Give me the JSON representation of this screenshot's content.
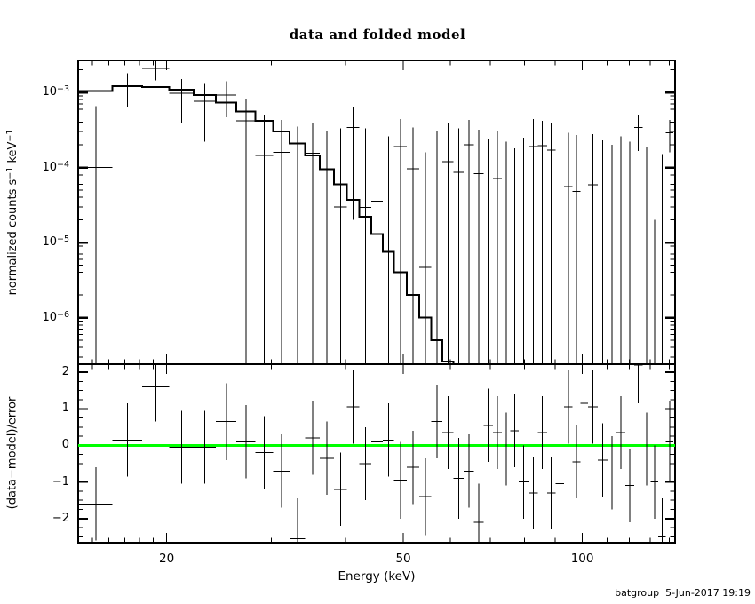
{
  "title": "data and folded model",
  "footer": "batgroup  5-Jun-2017 19:19",
  "xlabel": "Energy (keV)",
  "colors": {
    "foreground": "#000000",
    "background": "#ffffff",
    "zero_line": "#00ff00"
  },
  "chart_data": [
    {
      "panel": "top",
      "type": "scatter",
      "xscale": "log",
      "yscale": "log",
      "ylabel_parts": [
        {
          "text": "normalized counts s",
          "sup": false
        },
        {
          "text": "−1",
          "sup": true
        },
        {
          "text": " keV",
          "sup": false
        },
        {
          "text": "−1",
          "sup": true
        }
      ],
      "xlim": [
        14.2,
        143.2
      ],
      "ylim": [
        2.4e-07,
        0.00267
      ],
      "ytick_values": [
        0.001,
        0.0001,
        1e-05,
        1e-06
      ],
      "ytick_labels": [
        {
          "base": "10",
          "exp": "−3"
        },
        {
          "base": "10",
          "exp": "−4"
        },
        {
          "base": "10",
          "exp": "−5"
        },
        {
          "base": "10",
          "exp": "−6"
        }
      ],
      "xticks_major": [
        20,
        50,
        100
      ],
      "xtick_labels": [
        "20",
        "50",
        "100"
      ],
      "xticks_minor": [
        15,
        16,
        17,
        18,
        19,
        30,
        40,
        60,
        70,
        80,
        90,
        110,
        120,
        130,
        140
      ],
      "bin_edges_keV": [
        14.2,
        16.2,
        18.2,
        20.2,
        22.2,
        24.2,
        26.2,
        28.2,
        30.2,
        32.2,
        34.2,
        36.2,
        38.2,
        40.2,
        42.2,
        44.2,
        46.2,
        48.2,
        50.7,
        53.2,
        55.7,
        58.2,
        60.7,
        63.2,
        65.7,
        68.2,
        70.7,
        73.2,
        75.7,
        78.2,
        81.2,
        84.2,
        87.2,
        90.2,
        93.2,
        96.2,
        99.2,
        102.2,
        106.2,
        110.2,
        114.2,
        118.2,
        122.2,
        126.2,
        130.2,
        134.2,
        138.2,
        142.2
      ],
      "model_counts": [
        0.00105,
        0.00122,
        0.00118,
        0.00108,
        0.00092,
        0.00073,
        0.00056,
        0.00042,
        0.0003,
        0.00021,
        0.000145,
        9.5e-05,
        6e-05,
        3.7e-05,
        2.2e-05,
        1.3e-05,
        7.5e-06,
        4e-06,
        2e-06,
        1e-06,
        5e-07,
        2.6e-07,
        null,
        null,
        null,
        null,
        null,
        null,
        null,
        null,
        null,
        null,
        null,
        null,
        null,
        null,
        null,
        null,
        null,
        null,
        null,
        null,
        null,
        null,
        null,
        null,
        null
      ],
      "data_counts": [
        0.0001,
        0.0012,
        0.0021,
        0.00097,
        0.00076,
        0.00092,
        0.00042,
        0.000145,
        0.00016,
        null,
        0.000155,
        null,
        3e-05,
        0.00034,
        2.95e-05,
        3.55e-05,
        null,
        0.00019,
        9.6e-05,
        4.7e-06,
        null,
        0.00012,
        8.6e-05,
        0.0002,
        8.3e-05,
        null,
        7.1e-05,
        null,
        null,
        null,
        0.00019,
        0.000195,
        0.00017,
        null,
        5.6e-05,
        4.8e-05,
        null,
        5.9e-05,
        null,
        null,
        9e-05,
        null,
        0.00034,
        null,
        6.2e-06,
        null,
        0.00029
      ],
      "err_top": [
        0.00066,
        0.0018,
        0.0026,
        0.0015,
        0.0013,
        0.0014,
        0.00083,
        0.0005,
        0.00043,
        0.00035,
        0.00039,
        0.00031,
        0.00033,
        0.00065,
        0.00033,
        0.00032,
        0.00026,
        0.00044,
        0.00034,
        0.00016,
        0.0003,
        0.00039,
        0.00033,
        0.00043,
        0.00032,
        0.00024,
        0.0003,
        0.00022,
        0.00018,
        0.00025,
        0.00044,
        0.00042,
        0.00039,
        0.00016,
        0.00029,
        0.00027,
        0.00019,
        0.00028,
        0.00023,
        0.0002,
        0.00026,
        0.00022,
        0.00049,
        0.00019,
        2e-05,
        0.00015,
        0.00043
      ],
      "err_bottom": [
        0,
        0.00065,
        0.00145,
        0.00039,
        0.00022,
        0.00047,
        0,
        0,
        0,
        0,
        0,
        0,
        0,
        2e-05,
        0,
        0,
        0,
        0,
        0,
        0,
        0,
        0,
        0,
        0,
        0,
        0,
        0,
        0,
        0,
        0,
        0,
        0,
        0,
        0,
        0,
        0,
        0,
        0,
        0,
        0,
        0,
        0,
        0.000165,
        0,
        0,
        0,
        0.00016
      ]
    },
    {
      "panel": "bottom",
      "type": "scatter",
      "ylabel": "(data−model)/error",
      "ylim": [
        -2.66,
        2.22
      ],
      "yticks_major": [
        2,
        1,
        0,
        -1,
        -2
      ],
      "ytick_labels": [
        "2",
        "1",
        "0",
        "−1",
        "−2"
      ],
      "ytick_minor_step": 0.25,
      "zero_line": 0,
      "residuals": [
        -1.6,
        0.15,
        1.6,
        -0.05,
        -0.05,
        0.65,
        0.1,
        -0.2,
        -0.7,
        -2.55,
        0.2,
        -0.35,
        -1.2,
        1.05,
        -0.5,
        0.1,
        0.15,
        -0.95,
        -0.6,
        -1.4,
        0.65,
        0.35,
        -0.9,
        -0.7,
        -2.1,
        0.55,
        0.35,
        -0.1,
        0.4,
        -1.0,
        -1.3,
        0.35,
        -1.3,
        -1.05,
        1.05,
        -0.45,
        1.15,
        1.05,
        -0.4,
        -0.75,
        0.35,
        -1.1,
        2.2,
        -0.1,
        -1.0,
        -2.5,
        0.1
      ],
      "residual_errors": [
        1.0,
        1.0,
        0.95,
        1.0,
        1.0,
        1.05,
        1.0,
        1.0,
        1.0,
        1.1,
        1.0,
        1.0,
        1.0,
        1.0,
        1.0,
        1.0,
        1.0,
        1.05,
        1.0,
        1.05,
        1.0,
        1.0,
        1.1,
        1.0,
        1.05,
        1.0,
        1.0,
        1.0,
        1.0,
        1.0,
        1.0,
        1.0,
        1.0,
        1.0,
        1.0,
        1.0,
        1.0,
        1.0,
        1.0,
        1.0,
        1.0,
        1.0,
        1.05,
        1.0,
        1.0,
        1.05,
        1.1
      ]
    }
  ]
}
